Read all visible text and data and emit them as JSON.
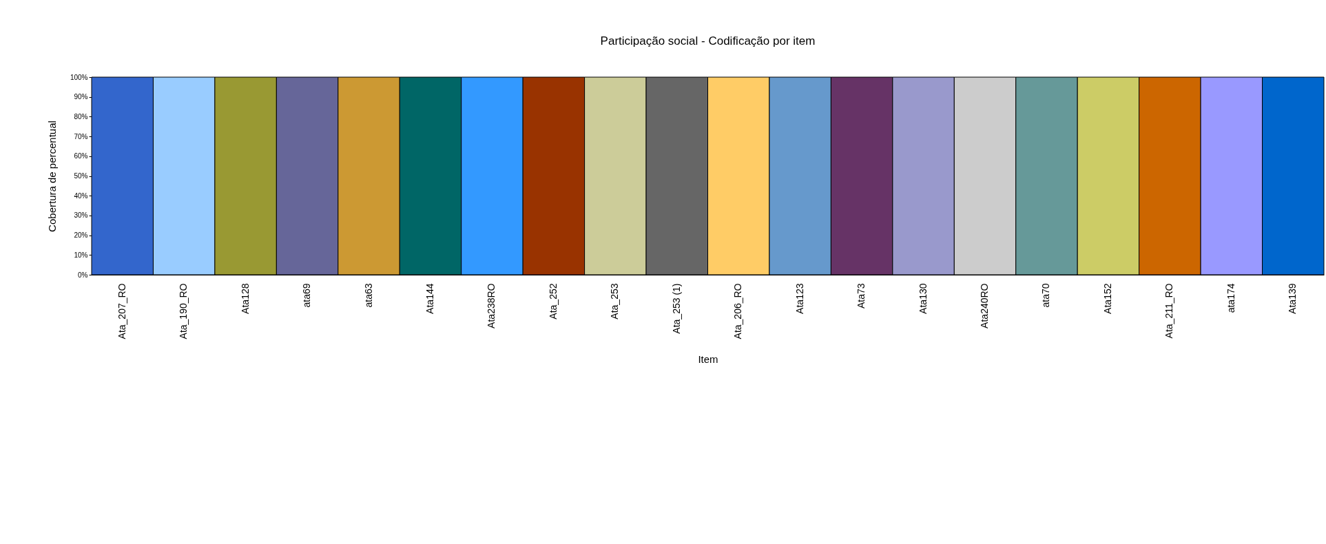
{
  "chart_data": {
    "type": "bar",
    "title": "Participação social - Codificação por item",
    "xlabel": "Item",
    "ylabel": "Cobertura de percentual",
    "categories": [
      "Ata_207_RO",
      "Ata_190_RO",
      "Ata128",
      "ata69",
      "ata63",
      "Ata144",
      "Ata238RO",
      "Ata_252",
      "Ata_253",
      "Ata_253 (1)",
      "Ata_206_RO",
      "Ata123",
      "Ata73",
      "Ata130",
      "Ata240RO",
      "ata70",
      "Ata152",
      "Ata_211_RO",
      "ata174",
      "Ata139"
    ],
    "values": [
      100,
      100,
      100,
      100,
      100,
      100,
      100,
      100,
      100,
      100,
      100,
      100,
      100,
      100,
      100,
      100,
      100,
      100,
      100,
      100
    ],
    "colors": [
      "#3366cc",
      "#99ccff",
      "#999933",
      "#666699",
      "#cc9933",
      "#006666",
      "#3399ff",
      "#993300",
      "#cccc99",
      "#666666",
      "#ffcc66",
      "#6699cc",
      "#663366",
      "#9999cc",
      "#cccccc",
      "#669999",
      "#cccc66",
      "#cc6600",
      "#9999ff",
      "#0066cc"
    ],
    "ylim": [
      0,
      100
    ],
    "yticks": [
      {
        "value": 0,
        "label": "0%"
      },
      {
        "value": 10,
        "label": "10%"
      },
      {
        "value": 20,
        "label": "20%"
      },
      {
        "value": 30,
        "label": "30%"
      },
      {
        "value": 40,
        "label": "40%"
      },
      {
        "value": 50,
        "label": "50%"
      },
      {
        "value": 60,
        "label": "60%"
      },
      {
        "value": 70,
        "label": "70%"
      },
      {
        "value": 80,
        "label": "80%"
      },
      {
        "value": 90,
        "label": "90%"
      },
      {
        "value": 100,
        "label": "100%"
      }
    ],
    "grid": false,
    "legend": false
  }
}
